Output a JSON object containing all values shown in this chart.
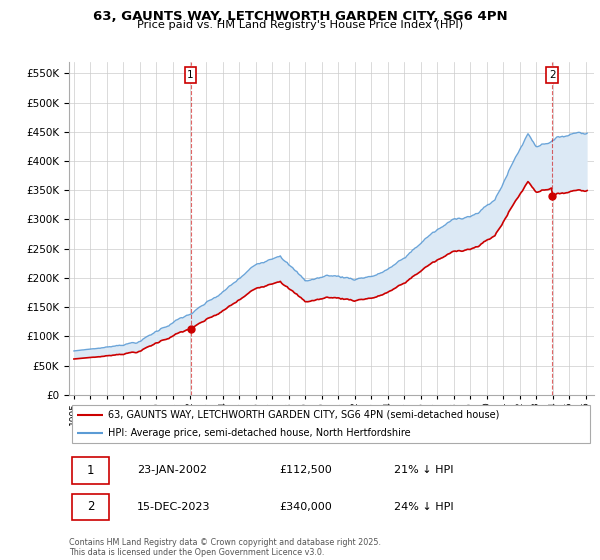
{
  "title_line1": "63, GAUNTS WAY, LETCHWORTH GARDEN CITY, SG6 4PN",
  "title_line2": "Price paid vs. HM Land Registry's House Price Index (HPI)",
  "legend_line1": "63, GAUNTS WAY, LETCHWORTH GARDEN CITY, SG6 4PN (semi-detached house)",
  "legend_line2": "HPI: Average price, semi-detached house, North Hertfordshire",
  "annotation1_date": "23-JAN-2002",
  "annotation1_price": "£112,500",
  "annotation1_hpi": "21% ↓ HPI",
  "annotation1_year": 2002.06,
  "annotation1_value": 112500,
  "annotation2_date": "15-DEC-2023",
  "annotation2_price": "£340,000",
  "annotation2_hpi": "24% ↓ HPI",
  "annotation2_year": 2023.96,
  "annotation2_value": 340000,
  "footnote": "Contains HM Land Registry data © Crown copyright and database right 2025.\nThis data is licensed under the Open Government Licence v3.0.",
  "hpi_color": "#5b9bd5",
  "hpi_fill_color": "#dce9f5",
  "price_color": "#cc0000",
  "vline_color": "#cc0000",
  "ylim": [
    0,
    570000
  ],
  "xlim_start": 1994.7,
  "xlim_end": 2026.5,
  "yticks": [
    0,
    50000,
    100000,
    150000,
    200000,
    250000,
    300000,
    350000,
    400000,
    450000,
    500000,
    550000
  ],
  "grid_color": "#cccccc"
}
